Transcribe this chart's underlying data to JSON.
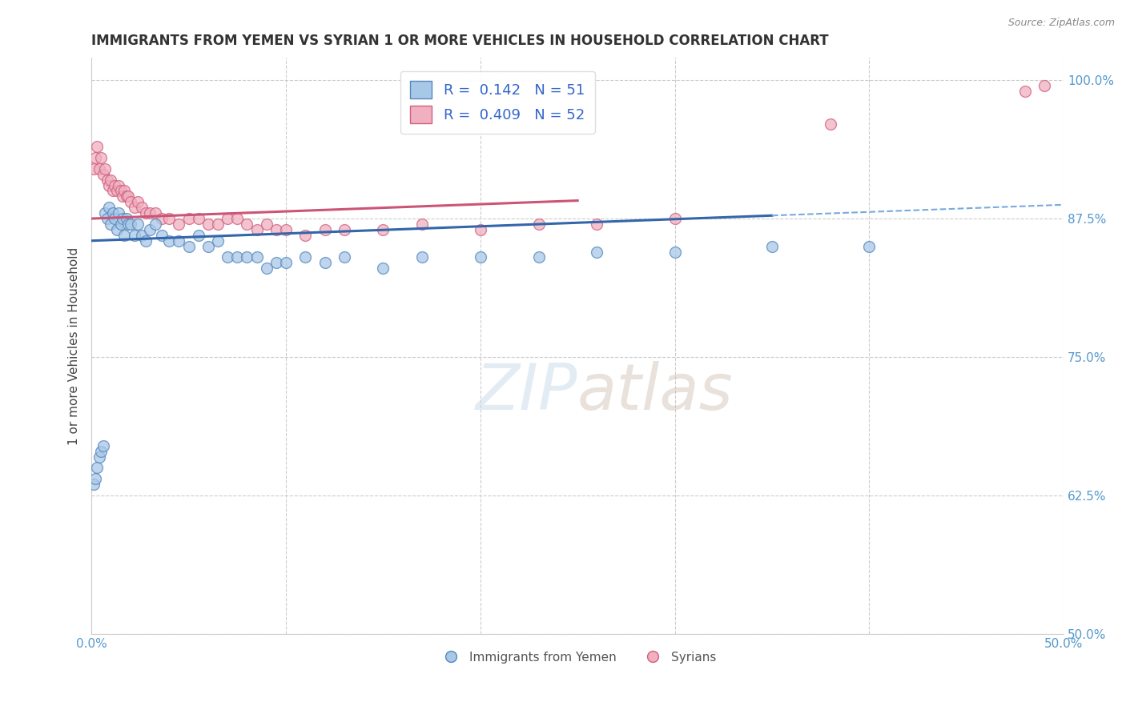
{
  "title": "IMMIGRANTS FROM YEMEN VS SYRIAN 1 OR MORE VEHICLES IN HOUSEHOLD CORRELATION CHART",
  "source_text": "Source: ZipAtlas.com",
  "ylabel": "1 or more Vehicles in Household",
  "legend_labels": [
    "Immigrants from Yemen",
    "Syrians"
  ],
  "r_values": [
    0.142,
    0.409
  ],
  "n_values": [
    51,
    52
  ],
  "xlim": [
    0.0,
    0.5
  ],
  "ylim": [
    0.5,
    1.02
  ],
  "xticks": [
    0.0,
    0.1,
    0.2,
    0.3,
    0.4,
    0.5
  ],
  "xticklabels": [
    "0.0%",
    "",
    "",
    "",
    "",
    "50.0%"
  ],
  "ytick_positions": [
    0.5,
    0.625,
    0.75,
    0.875,
    1.0
  ],
  "yticklabels": [
    "50.0%",
    "62.5%",
    "75.0%",
    "87.5%",
    "100.0%"
  ],
  "blue_scatter_face": "#a8c8e8",
  "blue_scatter_edge": "#5588bb",
  "pink_scatter_face": "#f0b0c0",
  "pink_scatter_edge": "#d06080",
  "blue_line_color": "#3366aa",
  "pink_line_color": "#cc5577",
  "dashed_line_color": "#7aaadd",
  "background_color": "#ffffff",
  "grid_color": "#cccccc",
  "tick_color": "#5599cc",
  "yemen_x": [
    0.001,
    0.002,
    0.003,
    0.004,
    0.005,
    0.006,
    0.007,
    0.008,
    0.009,
    0.01,
    0.011,
    0.012,
    0.013,
    0.014,
    0.015,
    0.016,
    0.017,
    0.018,
    0.019,
    0.02,
    0.022,
    0.024,
    0.026,
    0.028,
    0.03,
    0.033,
    0.036,
    0.04,
    0.045,
    0.05,
    0.055,
    0.06,
    0.065,
    0.07,
    0.075,
    0.08,
    0.085,
    0.09,
    0.095,
    0.1,
    0.11,
    0.12,
    0.13,
    0.15,
    0.17,
    0.2,
    0.23,
    0.26,
    0.3,
    0.35,
    0.4
  ],
  "yemen_y": [
    0.635,
    0.64,
    0.65,
    0.66,
    0.665,
    0.67,
    0.88,
    0.875,
    0.885,
    0.87,
    0.88,
    0.875,
    0.865,
    0.88,
    0.87,
    0.875,
    0.86,
    0.875,
    0.87,
    0.87,
    0.86,
    0.87,
    0.86,
    0.855,
    0.865,
    0.87,
    0.86,
    0.855,
    0.855,
    0.85,
    0.86,
    0.85,
    0.855,
    0.84,
    0.84,
    0.84,
    0.84,
    0.83,
    0.835,
    0.835,
    0.84,
    0.835,
    0.84,
    0.83,
    0.84,
    0.84,
    0.84,
    0.845,
    0.845,
    0.85,
    0.85
  ],
  "syrian_x": [
    0.001,
    0.002,
    0.003,
    0.004,
    0.005,
    0.006,
    0.007,
    0.008,
    0.009,
    0.01,
    0.011,
    0.012,
    0.013,
    0.014,
    0.015,
    0.016,
    0.017,
    0.018,
    0.019,
    0.02,
    0.022,
    0.024,
    0.026,
    0.028,
    0.03,
    0.033,
    0.036,
    0.04,
    0.045,
    0.05,
    0.055,
    0.06,
    0.065,
    0.07,
    0.075,
    0.08,
    0.085,
    0.09,
    0.095,
    0.1,
    0.11,
    0.12,
    0.13,
    0.15,
    0.17,
    0.2,
    0.23,
    0.26,
    0.3,
    0.38,
    0.48,
    0.49
  ],
  "syrian_y": [
    0.92,
    0.93,
    0.94,
    0.92,
    0.93,
    0.915,
    0.92,
    0.91,
    0.905,
    0.91,
    0.9,
    0.905,
    0.9,
    0.905,
    0.9,
    0.895,
    0.9,
    0.895,
    0.895,
    0.89,
    0.885,
    0.89,
    0.885,
    0.88,
    0.88,
    0.88,
    0.875,
    0.875,
    0.87,
    0.875,
    0.875,
    0.87,
    0.87,
    0.875,
    0.875,
    0.87,
    0.865,
    0.87,
    0.865,
    0.865,
    0.86,
    0.865,
    0.865,
    0.865,
    0.87,
    0.865,
    0.87,
    0.87,
    0.875,
    0.96,
    0.99,
    0.995
  ],
  "title_fontsize": 12,
  "axis_label_fontsize": 11,
  "tick_fontsize": 11,
  "legend_fontsize": 13,
  "marker_size": 100
}
